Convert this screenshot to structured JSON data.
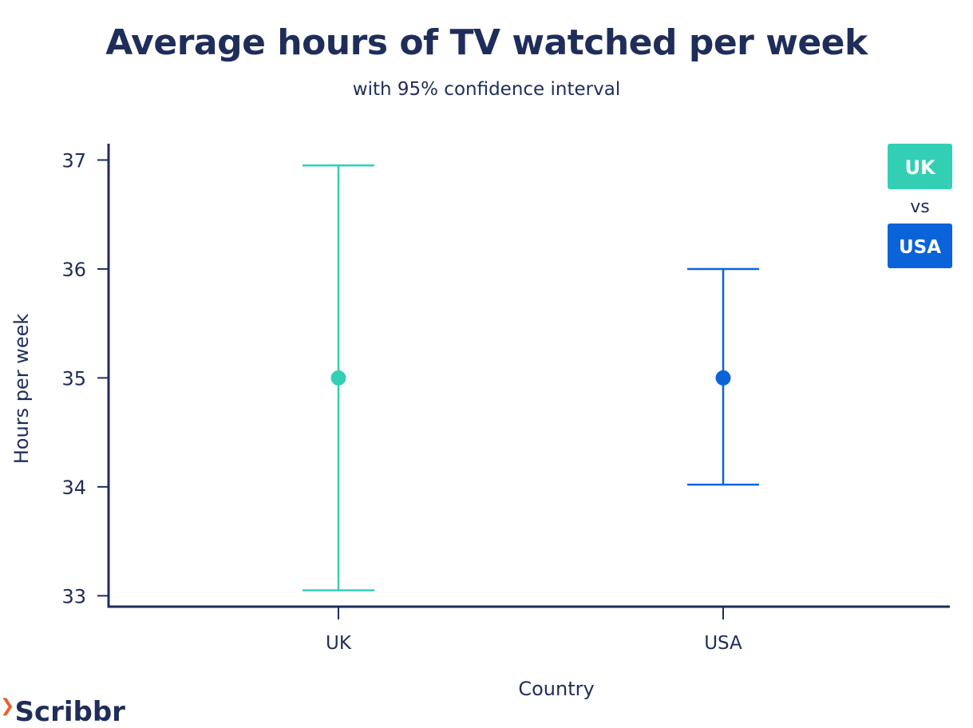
{
  "chart_data": {
    "type": "errorbar",
    "title": "Average hours of TV watched per week",
    "subtitle": "with 95% confidence interval",
    "xlabel": "Country",
    "ylabel": "Hours per week",
    "categories": [
      "UK",
      "USA"
    ],
    "series": [
      {
        "name": "UK",
        "mean": 35,
        "lower": 33.05,
        "upper": 36.95,
        "color": "#33cfb5"
      },
      {
        "name": "USA",
        "mean": 35,
        "lower": 34.02,
        "upper": 36.0,
        "color": "#0a63d8"
      }
    ],
    "ylim": [
      32.9,
      37.15
    ],
    "yticks": [
      33,
      34,
      35,
      36,
      37
    ],
    "legend": {
      "position": "top-right",
      "items": [
        {
          "label": "UK",
          "color": "#33cfb5"
        },
        {
          "label": "USA",
          "color": "#0a63d8"
        }
      ],
      "separator": "vs"
    },
    "grid": false
  },
  "brand": {
    "name": "Scribbr",
    "accent_color": "#e8632c"
  }
}
